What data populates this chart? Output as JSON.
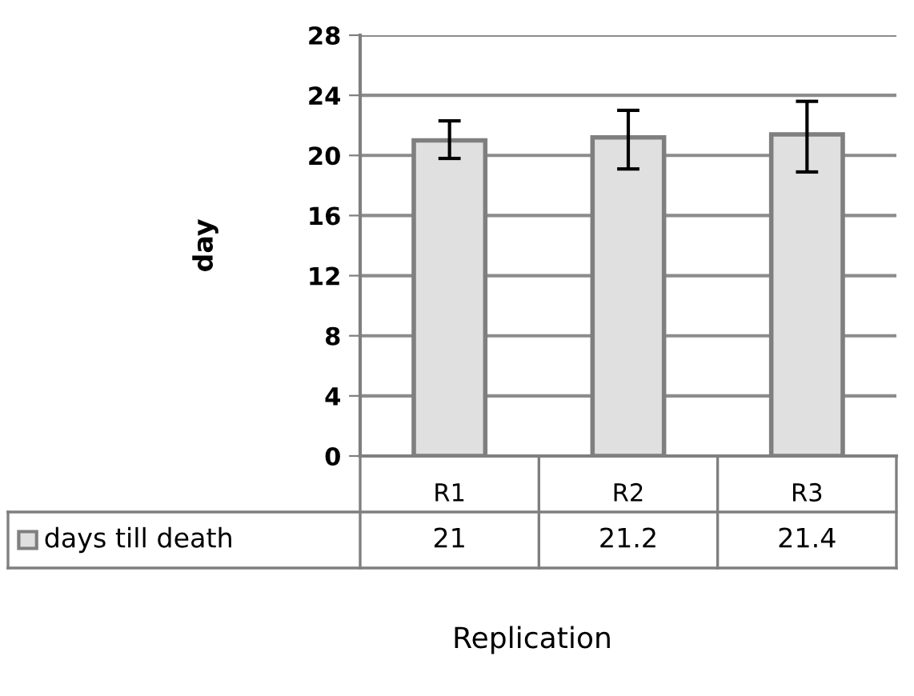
{
  "chart_data": {
    "type": "bar",
    "xlabel": "Replication",
    "ylabel": "day",
    "categories": [
      "R1",
      "R2",
      "R3"
    ],
    "series": [
      {
        "name": "days till death",
        "color": "#e0e0e0",
        "values": [
          21,
          21.2,
          21.4
        ],
        "errors": [
          [
            19.8,
            22.3
          ],
          [
            19.1,
            23.0
          ],
          [
            18.9,
            23.6
          ]
        ]
      }
    ],
    "ylim": [
      0,
      28
    ],
    "yticks": [
      0,
      4,
      8,
      12,
      16,
      20,
      24,
      28
    ],
    "grid": "y",
    "legend": "bottom",
    "data_labels": true
  }
}
